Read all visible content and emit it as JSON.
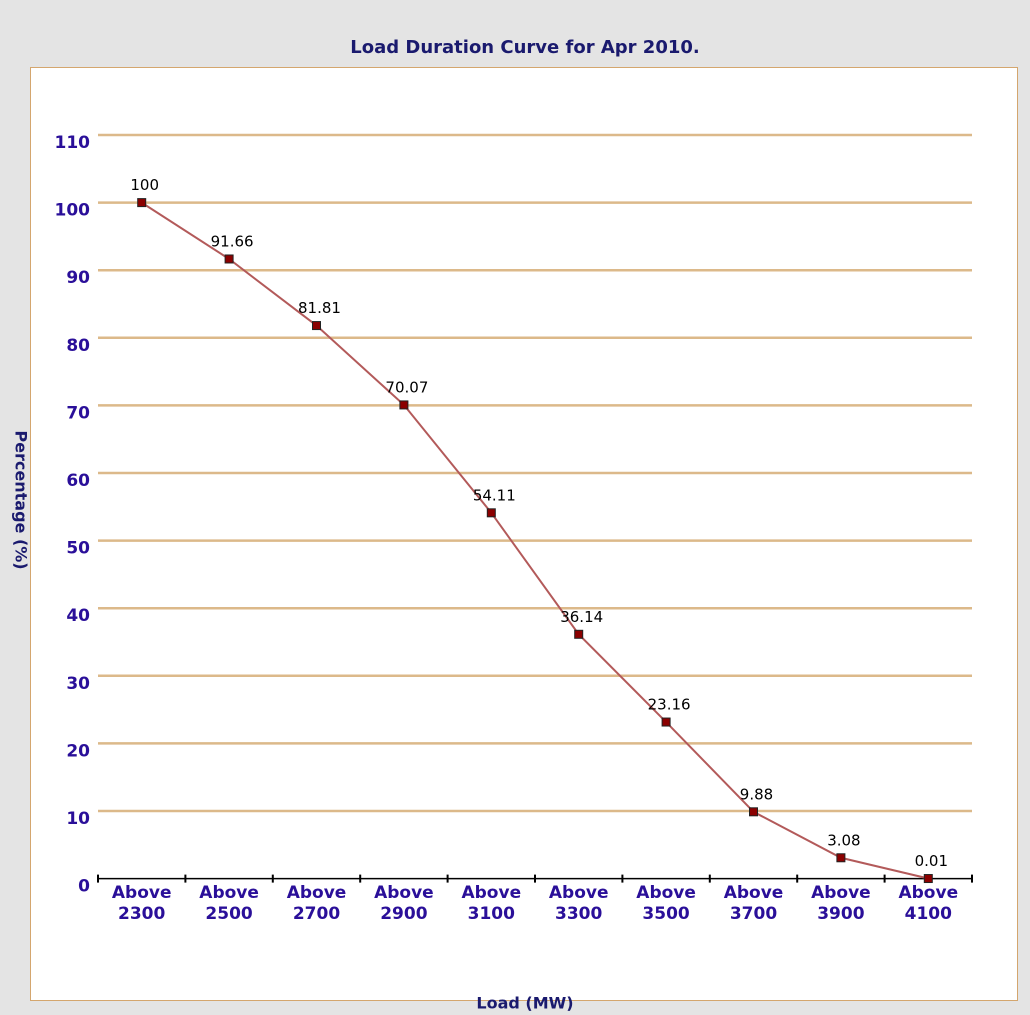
{
  "chart_data": {
    "type": "line",
    "title": "Load Duration Curve for Apr 2010.",
    "x_label": "Load (MW)",
    "y_label": "Percentage (%)",
    "categories": [
      "Above 2300",
      "Above 2500",
      "Above 2700",
      "Above 2900",
      "Above 3100",
      "Above 3300",
      "Above 3500",
      "Above 3700",
      "Above 3900",
      "Above 4100"
    ],
    "values": [
      100,
      91.66,
      81.81,
      70.07,
      54.11,
      36.14,
      23.16,
      9.88,
      3.08,
      0.01
    ],
    "color": "#b35a5a",
    "marker_color": "#8b0000",
    "ylim": [
      0,
      110
    ],
    "yticks": [
      0,
      10,
      20,
      30,
      40,
      50,
      60,
      70,
      80,
      90,
      100,
      110
    ],
    "grid": true
  }
}
